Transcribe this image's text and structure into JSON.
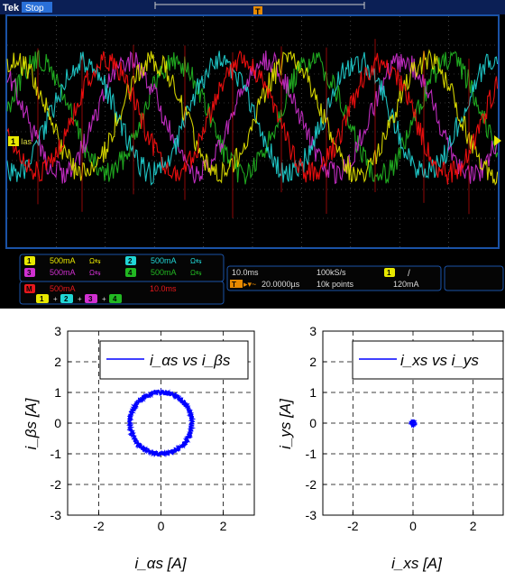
{
  "scope": {
    "brand": "Tek",
    "status": "Stop",
    "trigger_marker": "T",
    "channel_ref_label": "Ias",
    "colors": {
      "ch1": "#e8e800",
      "ch2": "#21d6d6",
      "ch3": "#d030d0",
      "ch4": "#22b822",
      "math": "#e8181c",
      "red_trace": "#ff1010",
      "grid": "#6a6a6a",
      "bezel": "#1a52a6"
    },
    "channels": [
      {
        "num": "1",
        "scale": "500mA",
        "coupling": "Ω⇆"
      },
      {
        "num": "2",
        "scale": "500mA",
        "coupling": "Ω⇆"
      },
      {
        "num": "3",
        "scale": "500mA",
        "coupling": "Ω⇆"
      },
      {
        "num": "4",
        "scale": "500mA",
        "coupling": "Ω⇆"
      }
    ],
    "math": {
      "num": "M",
      "scale": "500mA",
      "timebase": "10.0ms"
    },
    "math_expression": [
      "1",
      "2",
      "3",
      "4"
    ],
    "horizontal": {
      "timebase": "10.0ms",
      "sample_rate": "100kS/s",
      "delay": "20.0000µs",
      "record_length": "10k points"
    },
    "trigger": {
      "source": "1",
      "slope": "/",
      "level": "120mA"
    }
  },
  "chart_data": [
    {
      "type": "scatter",
      "title": "",
      "xlabel": "i_αs [A]",
      "ylabel": "i_βs [A]",
      "xlim": [
        -3,
        3
      ],
      "ylim": [
        -3,
        3
      ],
      "xticks": [
        -2,
        0,
        2
      ],
      "yticks": [
        -3,
        -2,
        -1,
        0,
        1,
        2,
        3
      ],
      "grid": true,
      "legend_position": "top",
      "series": [
        {
          "name": "i_αs vs i_βs",
          "color": "#0000ff",
          "shape": "circle",
          "radius": 1.0
        }
      ]
    },
    {
      "type": "scatter",
      "title": "",
      "xlabel": "i_xs [A]",
      "ylabel": "i_ys [A]",
      "xlim": [
        -3,
        3
      ],
      "ylim": [
        -3,
        3
      ],
      "xticks": [
        -2,
        0,
        2
      ],
      "yticks": [
        -3,
        -2,
        -1,
        0,
        1,
        2,
        3
      ],
      "grid": true,
      "legend_position": "top",
      "series": [
        {
          "name": "i_xs vs i_ys",
          "color": "#0000ff",
          "shape": "cluster",
          "center": [
            0,
            0
          ],
          "radius": 0.1
        }
      ]
    }
  ]
}
